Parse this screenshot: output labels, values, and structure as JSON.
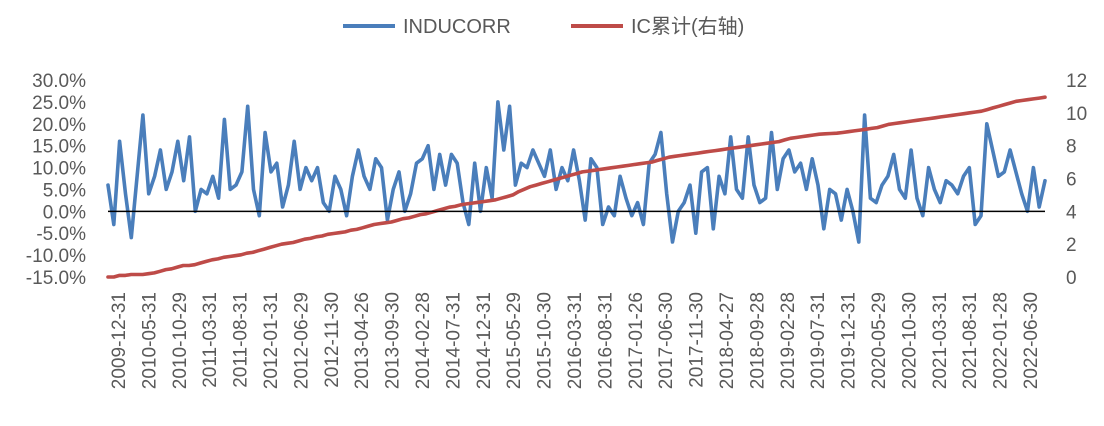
{
  "chart_data": {
    "type": "line",
    "title": "",
    "xlabel": "",
    "ylabel": "",
    "y_left": {
      "ylim": [
        -15,
        30
      ],
      "ticks": [
        -15,
        -10,
        -5,
        0,
        5,
        10,
        15,
        20,
        25,
        30
      ],
      "tick_labels": [
        "-15.0%",
        "-10.0%",
        "-5.0%",
        "0.0%",
        "5.0%",
        "10.0%",
        "15.0%",
        "20.0%",
        "25.0%",
        "30.0%"
      ]
    },
    "y_right": {
      "ylim": [
        0,
        12
      ],
      "ticks": [
        0,
        2,
        4,
        6,
        8,
        10,
        12
      ],
      "tick_labels": [
        "0",
        "2",
        "4",
        "6",
        "8",
        "10",
        "12"
      ]
    },
    "x_tick_labels": [
      "2009-12-31",
      "2010-05-31",
      "2010-10-29",
      "2011-03-31",
      "2011-08-31",
      "2012-01-31",
      "2012-06-29",
      "2012-11-30",
      "2013-04-26",
      "2013-09-30",
      "2014-02-28",
      "2014-07-31",
      "2014-12-31",
      "2015-05-29",
      "2015-10-30",
      "2016-03-31",
      "2016-08-31",
      "2017-01-26",
      "2017-06-30",
      "2017-11-30",
      "2018-04-27",
      "2018-09-28",
      "2019-02-28",
      "2019-07-31",
      "2019-12-31",
      "2020-05-29",
      "2020-10-30",
      "2021-03-31",
      "2021-08-31",
      "2022-01-28",
      "2022-06-30"
    ],
    "legend": {
      "placement": "top-center",
      "items": [
        {
          "name": "INDUCORR",
          "color": "#4a7ebb"
        },
        {
          "name": "IC累计(右轴)",
          "color": "#be4b48"
        }
      ]
    },
    "series": [
      {
        "name": "INDUCORR",
        "axis": "left",
        "color": "#4a7ebb",
        "values": [
          6,
          -3,
          16,
          4,
          -6,
          8,
          22,
          4,
          8,
          14,
          5,
          9,
          16,
          7,
          17,
          0,
          5,
          4,
          8,
          3,
          21,
          5,
          6,
          9,
          24,
          5,
          -1,
          18,
          9,
          11,
          1,
          6,
          16,
          5,
          10,
          7,
          10,
          2,
          0,
          8,
          5,
          -1,
          8,
          14,
          8,
          5,
          12,
          10,
          -2,
          5,
          9,
          0,
          4,
          11,
          12,
          15,
          5,
          13,
          6,
          13,
          11,
          2,
          -3,
          11,
          0,
          10,
          3,
          25,
          14,
          24,
          6,
          11,
          10,
          14,
          11,
          8,
          14,
          5,
          10,
          7,
          14,
          7,
          -2,
          12,
          10,
          -3,
          1,
          -1,
          8,
          3,
          -1,
          2,
          -3,
          11,
          13,
          18,
          4,
          -7,
          0,
          2,
          6,
          -5,
          9,
          10,
          -4,
          8,
          4,
          17,
          5,
          3,
          17,
          6,
          2,
          3,
          18,
          5,
          12,
          14,
          9,
          11,
          5,
          12,
          6,
          -4,
          5,
          4,
          -2,
          5,
          0,
          -7,
          22,
          3,
          2,
          6,
          8,
          13,
          5,
          3,
          14,
          3,
          -1,
          10,
          5,
          2,
          7,
          6,
          4,
          8,
          10,
          -3,
          -1,
          20,
          14,
          8,
          9,
          14,
          9,
          4,
          0,
          10,
          1,
          7
        ]
      },
      {
        "name": "IC累计(右轴)",
        "axis": "right",
        "color": "#be4b48",
        "values": [
          0.0,
          0.0,
          0.1,
          0.1,
          0.15,
          0.15,
          0.15,
          0.2,
          0.25,
          0.35,
          0.45,
          0.5,
          0.6,
          0.7,
          0.7,
          0.75,
          0.85,
          0.95,
          1.05,
          1.1,
          1.2,
          1.25,
          1.3,
          1.35,
          1.45,
          1.5,
          1.6,
          1.7,
          1.8,
          1.9,
          2.0,
          2.05,
          2.1,
          2.2,
          2.3,
          2.35,
          2.45,
          2.5,
          2.6,
          2.65,
          2.7,
          2.75,
          2.85,
          2.9,
          3.0,
          3.1,
          3.2,
          3.25,
          3.3,
          3.35,
          3.45,
          3.55,
          3.6,
          3.7,
          3.8,
          3.85,
          3.95,
          4.05,
          4.15,
          4.25,
          4.3,
          4.4,
          4.45,
          4.5,
          4.55,
          4.6,
          4.65,
          4.7,
          4.8,
          4.9,
          5.0,
          5.2,
          5.35,
          5.5,
          5.6,
          5.7,
          5.8,
          5.9,
          6.0,
          6.1,
          6.2,
          6.3,
          6.4,
          6.45,
          6.5,
          6.55,
          6.6,
          6.65,
          6.7,
          6.75,
          6.8,
          6.85,
          6.9,
          6.95,
          7.0,
          7.1,
          7.2,
          7.3,
          7.35,
          7.4,
          7.45,
          7.5,
          7.55,
          7.6,
          7.65,
          7.7,
          7.75,
          7.8,
          7.85,
          7.9,
          7.95,
          8.0,
          8.05,
          8.1,
          8.15,
          8.2,
          8.25,
          8.35,
          8.45,
          8.5,
          8.55,
          8.6,
          8.65,
          8.7,
          8.72,
          8.74,
          8.76,
          8.8,
          8.85,
          8.9,
          8.95,
          9.0,
          9.05,
          9.1,
          9.2,
          9.3,
          9.35,
          9.4,
          9.45,
          9.5,
          9.55,
          9.6,
          9.65,
          9.7,
          9.75,
          9.8,
          9.85,
          9.9,
          9.95,
          10.0,
          10.05,
          10.1,
          10.2,
          10.3,
          10.4,
          10.5,
          10.6,
          10.7,
          10.75,
          10.8,
          10.85,
          10.9,
          10.95
        ]
      }
    ]
  }
}
